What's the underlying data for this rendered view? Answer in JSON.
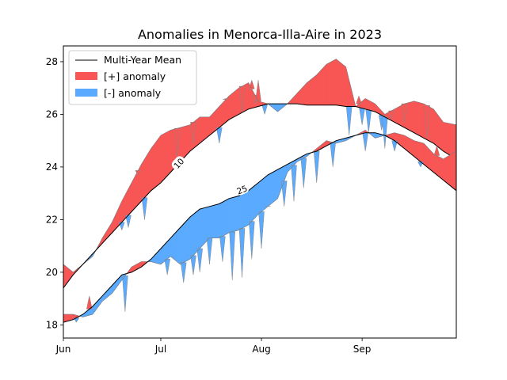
{
  "chart_data": {
    "type": "area",
    "title": "Anomalies in Menorca-Illa-Aire in 2023",
    "xlabel": "",
    "ylabel": "",
    "x_range": [
      "2023-06-01",
      "2023-09-30"
    ],
    "ylim": [
      17.5,
      28.6
    ],
    "yticks": [
      18,
      20,
      22,
      24,
      26,
      28
    ],
    "xticks": [
      {
        "date": "2023-06-01",
        "label": "Jun"
      },
      {
        "date": "2023-07-01",
        "label": "Jul"
      },
      {
        "date": "2023-08-01",
        "label": "Aug"
      },
      {
        "date": "2023-09-01",
        "label": "Sep"
      }
    ],
    "grid": false,
    "legend": {
      "placement": "top-left",
      "entries": [
        {
          "label": "Multi-Year Mean",
          "kind": "line",
          "color": "#000000"
        },
        {
          "label": "[+] anomaly",
          "kind": "patch",
          "color": "#f85555"
        },
        {
          "label": "[-] anomaly",
          "kind": "patch",
          "color": "#5aabff"
        }
      ]
    },
    "colors": {
      "positive": "#f85555",
      "negative": "#5aabff",
      "mean": "#000000"
    },
    "series": [
      {
        "contour_label": "10",
        "x": [
          "2023-06-01",
          "2023-06-04",
          "2023-06-07",
          "2023-06-10",
          "2023-06-13",
          "2023-06-16",
          "2023-06-19",
          "2023-06-22",
          "2023-06-25",
          "2023-06-28",
          "2023-07-01",
          "2023-07-04",
          "2023-07-07",
          "2023-07-10",
          "2023-07-13",
          "2023-07-16",
          "2023-07-19",
          "2023-07-22",
          "2023-07-25",
          "2023-07-28",
          "2023-07-31",
          "2023-08-03",
          "2023-08-06",
          "2023-08-09",
          "2023-08-12",
          "2023-08-15",
          "2023-08-18",
          "2023-08-21",
          "2023-08-24",
          "2023-08-27",
          "2023-08-30",
          "2023-09-02",
          "2023-09-05",
          "2023-09-08",
          "2023-09-11",
          "2023-09-14",
          "2023-09-17",
          "2023-09-20",
          "2023-09-23",
          "2023-09-26",
          "2023-09-30"
        ],
        "mean": [
          19.4,
          19.9,
          20.3,
          20.7,
          21.1,
          21.5,
          21.9,
          22.3,
          22.7,
          23.1,
          23.4,
          23.8,
          24.2,
          24.6,
          24.9,
          25.2,
          25.5,
          25.8,
          26.0,
          26.2,
          26.3,
          26.4,
          26.4,
          26.4,
          26.4,
          26.35,
          26.35,
          26.35,
          26.35,
          26.3,
          26.3,
          26.2,
          26.1,
          25.9,
          25.7,
          25.5,
          25.3,
          25.1,
          24.9,
          24.6,
          24.3
        ],
        "observed": [
          20.3,
          20.0,
          20.3,
          20.6,
          21.3,
          21.9,
          22.7,
          23.4,
          24.1,
          24.7,
          25.2,
          25.4,
          25.5,
          25.6,
          25.9,
          25.9,
          26.3,
          26.7,
          27.0,
          27.2,
          26.5,
          26.4,
          26.1,
          26.4,
          26.8,
          27.2,
          27.5,
          27.9,
          28.1,
          27.8,
          26.3,
          26.6,
          26.4,
          26.0,
          26.2,
          26.4,
          26.5,
          26.4,
          26.2,
          25.7,
          25.6
        ],
        "spikes": [
          {
            "date": "2023-06-19",
            "value": 21.6
          },
          {
            "date": "2023-06-21",
            "value": 21.7
          },
          {
            "date": "2023-06-24",
            "value": 23.7
          },
          {
            "date": "2023-06-26",
            "value": 22.0
          },
          {
            "date": "2023-07-06",
            "value": 24.4
          },
          {
            "date": "2023-07-11",
            "value": 24.9
          },
          {
            "date": "2023-07-15",
            "value": 25.9
          },
          {
            "date": "2023-07-19",
            "value": 24.9
          },
          {
            "date": "2023-07-21",
            "value": 26.6
          },
          {
            "date": "2023-07-26",
            "value": 26.1
          },
          {
            "date": "2023-07-29",
            "value": 27.3
          },
          {
            "date": "2023-07-30",
            "value": 26.4
          },
          {
            "date": "2023-07-31",
            "value": 27.3
          },
          {
            "date": "2023-08-02",
            "value": 26.0
          },
          {
            "date": "2023-08-28",
            "value": 25.2
          },
          {
            "date": "2023-08-31",
            "value": 26.7
          },
          {
            "date": "2023-09-01",
            "value": 25.6
          },
          {
            "date": "2023-09-03",
            "value": 25.3
          },
          {
            "date": "2023-09-07",
            "value": 25.4
          },
          {
            "date": "2023-09-08",
            "value": 24.7
          },
          {
            "date": "2023-09-10",
            "value": 25.8
          },
          {
            "date": "2023-09-14",
            "value": 25.7
          },
          {
            "date": "2023-09-21",
            "value": 25.1
          }
        ]
      },
      {
        "contour_label": "25",
        "x": [
          "2023-06-01",
          "2023-06-04",
          "2023-06-07",
          "2023-06-10",
          "2023-06-13",
          "2023-06-16",
          "2023-06-19",
          "2023-06-22",
          "2023-06-25",
          "2023-06-28",
          "2023-07-01",
          "2023-07-04",
          "2023-07-07",
          "2023-07-10",
          "2023-07-13",
          "2023-07-16",
          "2023-07-19",
          "2023-07-22",
          "2023-07-25",
          "2023-07-28",
          "2023-07-31",
          "2023-08-03",
          "2023-08-06",
          "2023-08-09",
          "2023-08-12",
          "2023-08-15",
          "2023-08-18",
          "2023-08-21",
          "2023-08-24",
          "2023-08-27",
          "2023-08-30",
          "2023-09-02",
          "2023-09-05",
          "2023-09-08",
          "2023-09-11",
          "2023-09-14",
          "2023-09-17",
          "2023-09-20",
          "2023-09-23",
          "2023-09-26",
          "2023-09-30"
        ],
        "mean": [
          18.1,
          18.2,
          18.4,
          18.7,
          19.1,
          19.5,
          19.9,
          20.0,
          20.2,
          20.5,
          20.9,
          21.3,
          21.7,
          22.1,
          22.4,
          22.5,
          22.6,
          22.8,
          22.9,
          23.1,
          23.4,
          23.7,
          23.9,
          24.1,
          24.3,
          24.5,
          24.6,
          24.8,
          25.0,
          25.1,
          25.2,
          25.3,
          25.3,
          25.2,
          25.0,
          24.7,
          24.4,
          24.1,
          23.8,
          23.5,
          23.1
        ],
        "observed": [
          18.4,
          18.4,
          18.3,
          18.4,
          18.9,
          19.2,
          19.7,
          20.2,
          20.4,
          20.4,
          20.3,
          20.6,
          20.3,
          20.5,
          20.9,
          21.3,
          21.3,
          21.5,
          21.6,
          21.8,
          22.2,
          22.5,
          22.8,
          23.8,
          24.2,
          24.4,
          24.7,
          25.0,
          24.9,
          25.0,
          25.2,
          25.4,
          25.1,
          25.2,
          25.3,
          25.2,
          25.0,
          24.9,
          24.5,
          24.3,
          24.6
        ],
        "spikes": [
          {
            "date": "2023-06-05",
            "value": 18.1
          },
          {
            "date": "2023-06-09",
            "value": 19.1
          },
          {
            "date": "2023-06-20",
            "value": 18.5
          },
          {
            "date": "2023-07-03",
            "value": 19.9
          },
          {
            "date": "2023-07-08",
            "value": 19.6
          },
          {
            "date": "2023-07-11",
            "value": 19.9
          },
          {
            "date": "2023-07-13",
            "value": 20.0
          },
          {
            "date": "2023-07-16",
            "value": 20.3
          },
          {
            "date": "2023-07-20",
            "value": 20.4
          },
          {
            "date": "2023-07-23",
            "value": 19.7
          },
          {
            "date": "2023-07-26",
            "value": 19.8
          },
          {
            "date": "2023-07-29",
            "value": 20.5
          },
          {
            "date": "2023-08-01",
            "value": 20.9
          },
          {
            "date": "2023-08-03",
            "value": 22.5
          },
          {
            "date": "2023-08-08",
            "value": 22.5
          },
          {
            "date": "2023-08-11",
            "value": 22.7
          },
          {
            "date": "2023-08-14",
            "value": 23.2
          },
          {
            "date": "2023-08-18",
            "value": 23.4
          },
          {
            "date": "2023-08-23",
            "value": 24.0
          },
          {
            "date": "2023-09-02",
            "value": 24.6
          },
          {
            "date": "2023-09-11",
            "value": 24.6
          },
          {
            "date": "2023-09-19",
            "value": 24.0
          },
          {
            "date": "2023-09-24",
            "value": 24.8
          }
        ]
      }
    ]
  }
}
